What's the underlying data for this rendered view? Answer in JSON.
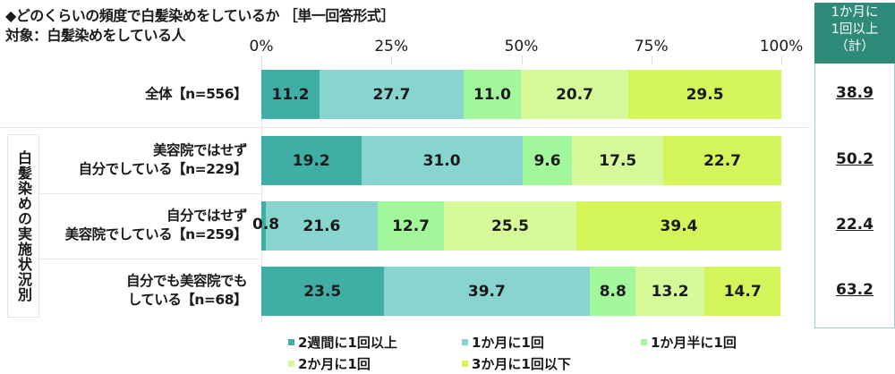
{
  "title": "◆どのくらいの頻度で白髪染めをしているか ［単一回答形式］",
  "subtitle": "対象：白髪染めをしている人",
  "group_label": "白髪染めの実施状況別",
  "summary_header": [
    "1か月に",
    "1回以上",
    "（計）"
  ],
  "chart_data": {
    "type": "bar",
    "orientation": "horizontal",
    "stacked": true,
    "xlim": [
      0,
      100
    ],
    "x_ticks": [
      "0%",
      "25%",
      "50%",
      "75%",
      "100%"
    ],
    "legend_position": "bottom",
    "categories": [
      [
        "全体【n=556】"
      ],
      [
        "美容院ではせず",
        "自分でしている【n=229】"
      ],
      [
        "自分ではせず",
        "美容院でしている【n=259】"
      ],
      [
        "自分でも美容院でも",
        "している【n=68】"
      ]
    ],
    "series": [
      {
        "name": "2週間に1回以上",
        "color": "#3fafa5",
        "values": [
          11.2,
          19.2,
          0.8,
          23.5
        ]
      },
      {
        "name": "1か月に1回",
        "color": "#88d4cf",
        "values": [
          27.7,
          31.0,
          21.6,
          39.7
        ]
      },
      {
        "name": "1か月半に1回",
        "color": "#a2f79a",
        "values": [
          11.0,
          9.6,
          12.7,
          8.8
        ]
      },
      {
        "name": "2か月に1回",
        "color": "#d6fa9a",
        "values": [
          20.7,
          17.5,
          25.5,
          13.2
        ]
      },
      {
        "name": "3か月に1回以下",
        "color": "#d3f55a",
        "values": [
          29.5,
          22.7,
          39.4,
          14.7
        ]
      }
    ],
    "labels": [
      [
        "11.2",
        "27.7",
        "11.0",
        "20.7",
        "29.5"
      ],
      [
        "19.2",
        "31.0",
        "9.6",
        "17.5",
        "22.7"
      ],
      [
        "0.8",
        "21.6",
        "12.7",
        "25.5",
        "39.4"
      ],
      [
        "23.5",
        "39.7",
        "8.8",
        "13.2",
        "14.7"
      ]
    ],
    "summary_values": [
      "38.9",
      "50.2",
      "22.4",
      "63.2"
    ]
  }
}
